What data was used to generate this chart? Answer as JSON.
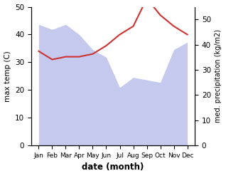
{
  "months": [
    "Jan",
    "Feb",
    "Mar",
    "Apr",
    "May",
    "Jun",
    "Jul",
    "Aug",
    "Sep",
    "Oct",
    "Nov",
    "Dec"
  ],
  "max_temp": [
    34,
    31,
    32,
    32,
    33,
    36,
    40,
    43,
    53,
    47,
    43,
    40
  ],
  "med_precip": [
    48,
    46,
    48,
    44,
    38,
    35,
    23,
    27,
    26,
    25,
    38,
    41
  ],
  "temp_line_color": "#cc3333",
  "fill_color": "#b0b8e8",
  "fill_alpha": 0.75,
  "xlabel": "date (month)",
  "ylabel_left": "max temp (C)",
  "ylabel_right": "med. precipitation (kg/m2)",
  "ylim_left": [
    0,
    50
  ],
  "ylim_right": [
    0,
    55
  ],
  "yticks_left": [
    0,
    10,
    20,
    30,
    40,
    50
  ],
  "yticks_right": [
    0,
    10,
    20,
    30,
    40,
    50
  ],
  "fig_width": 3.18,
  "fig_height": 2.47,
  "dpi": 100
}
